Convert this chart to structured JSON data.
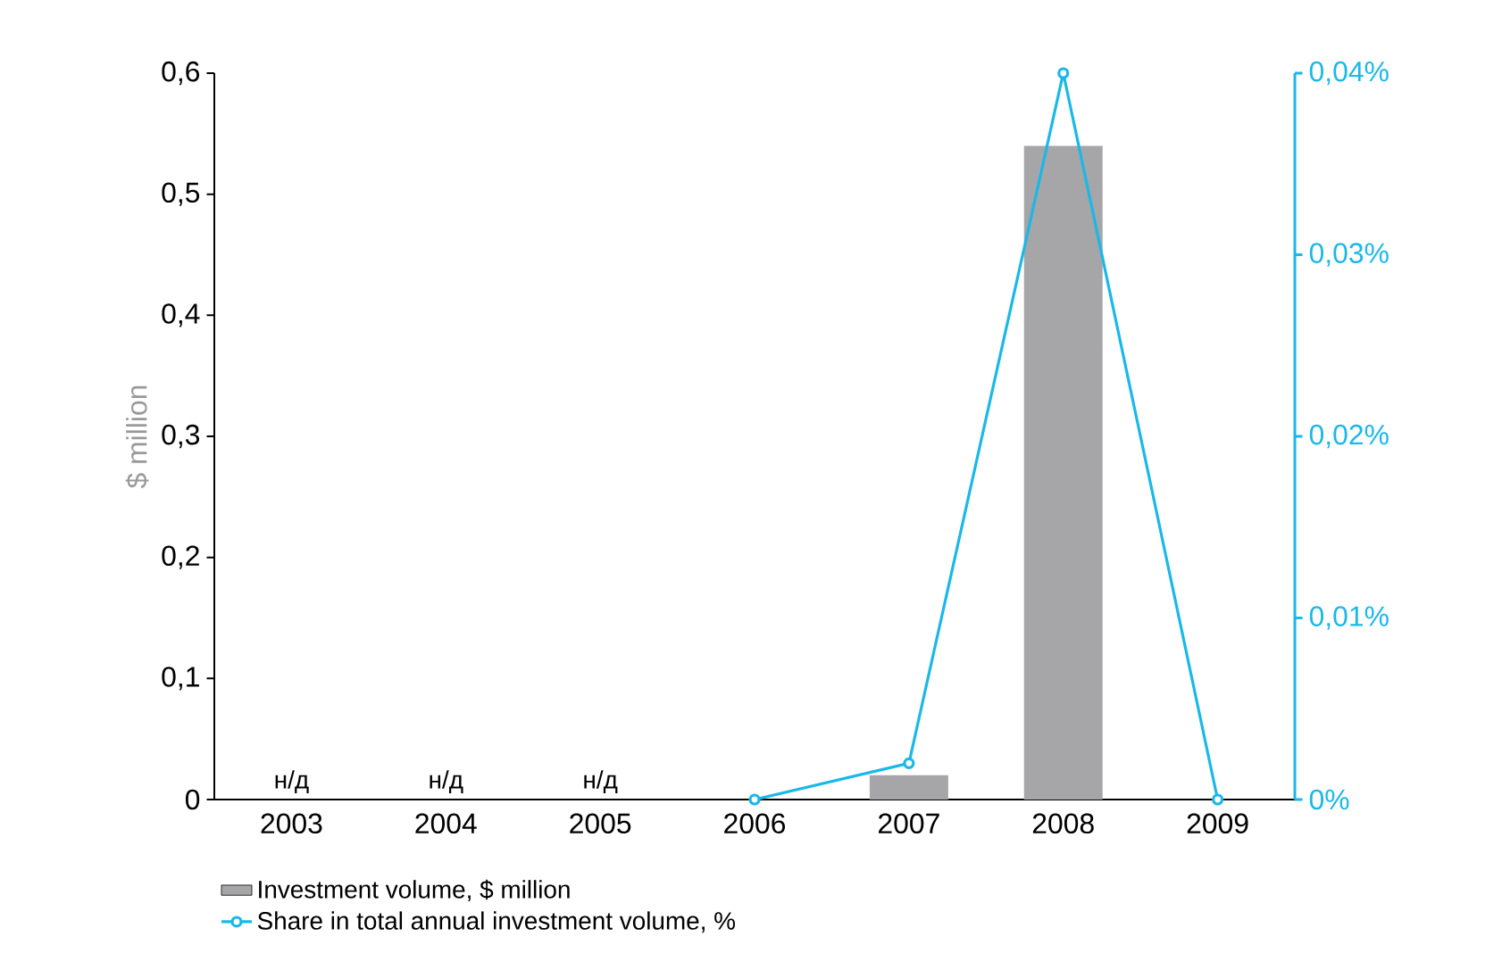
{
  "chart_data": {
    "type": "bar",
    "ylabel": "$ million",
    "categories": [
      "2003",
      "2004",
      "2005",
      "2006",
      "2007",
      "2008",
      "2009"
    ],
    "series": [
      {
        "name": "Investment volume, $ million",
        "color": "#a6a6a8",
        "values": [
          null,
          null,
          null,
          0,
          0.02,
          0.54,
          0
        ],
        "value_labels": [
          "н/д",
          "н/д",
          "н/д",
          null,
          null,
          null,
          null
        ]
      },
      {
        "name": "Share in total annual investment volume, %",
        "type": "line",
        "axis": "y2",
        "color": "#1ab8e8",
        "marker": "circle",
        "values": [
          null,
          null,
          null,
          0,
          0.002,
          0.04,
          0
        ]
      }
    ],
    "ylim": [
      0,
      0.6
    ],
    "yticks": [
      0,
      {
        "value": 0.1,
        "label": "0,1"
      },
      {
        "value": 0.2,
        "label": "0,2"
      },
      {
        "value": 0.3,
        "label": "0,3"
      },
      {
        "value": 0.4,
        "label": "0,4"
      },
      {
        "value": 0.5,
        "label": "0,5"
      },
      {
        "value": 0.6,
        "label": "0,6"
      }
    ],
    "y2lim": [
      0,
      0.04
    ],
    "y2ticks": [
      {
        "value": 0,
        "label": "0%"
      },
      {
        "value": 0.01,
        "label": "0,01%"
      },
      {
        "value": 0.02,
        "label": "0,02%"
      },
      {
        "value": 0.03,
        "label": "0,03%"
      },
      {
        "value": 0.04,
        "label": "0,04%"
      }
    ],
    "legend": "bottom"
  }
}
